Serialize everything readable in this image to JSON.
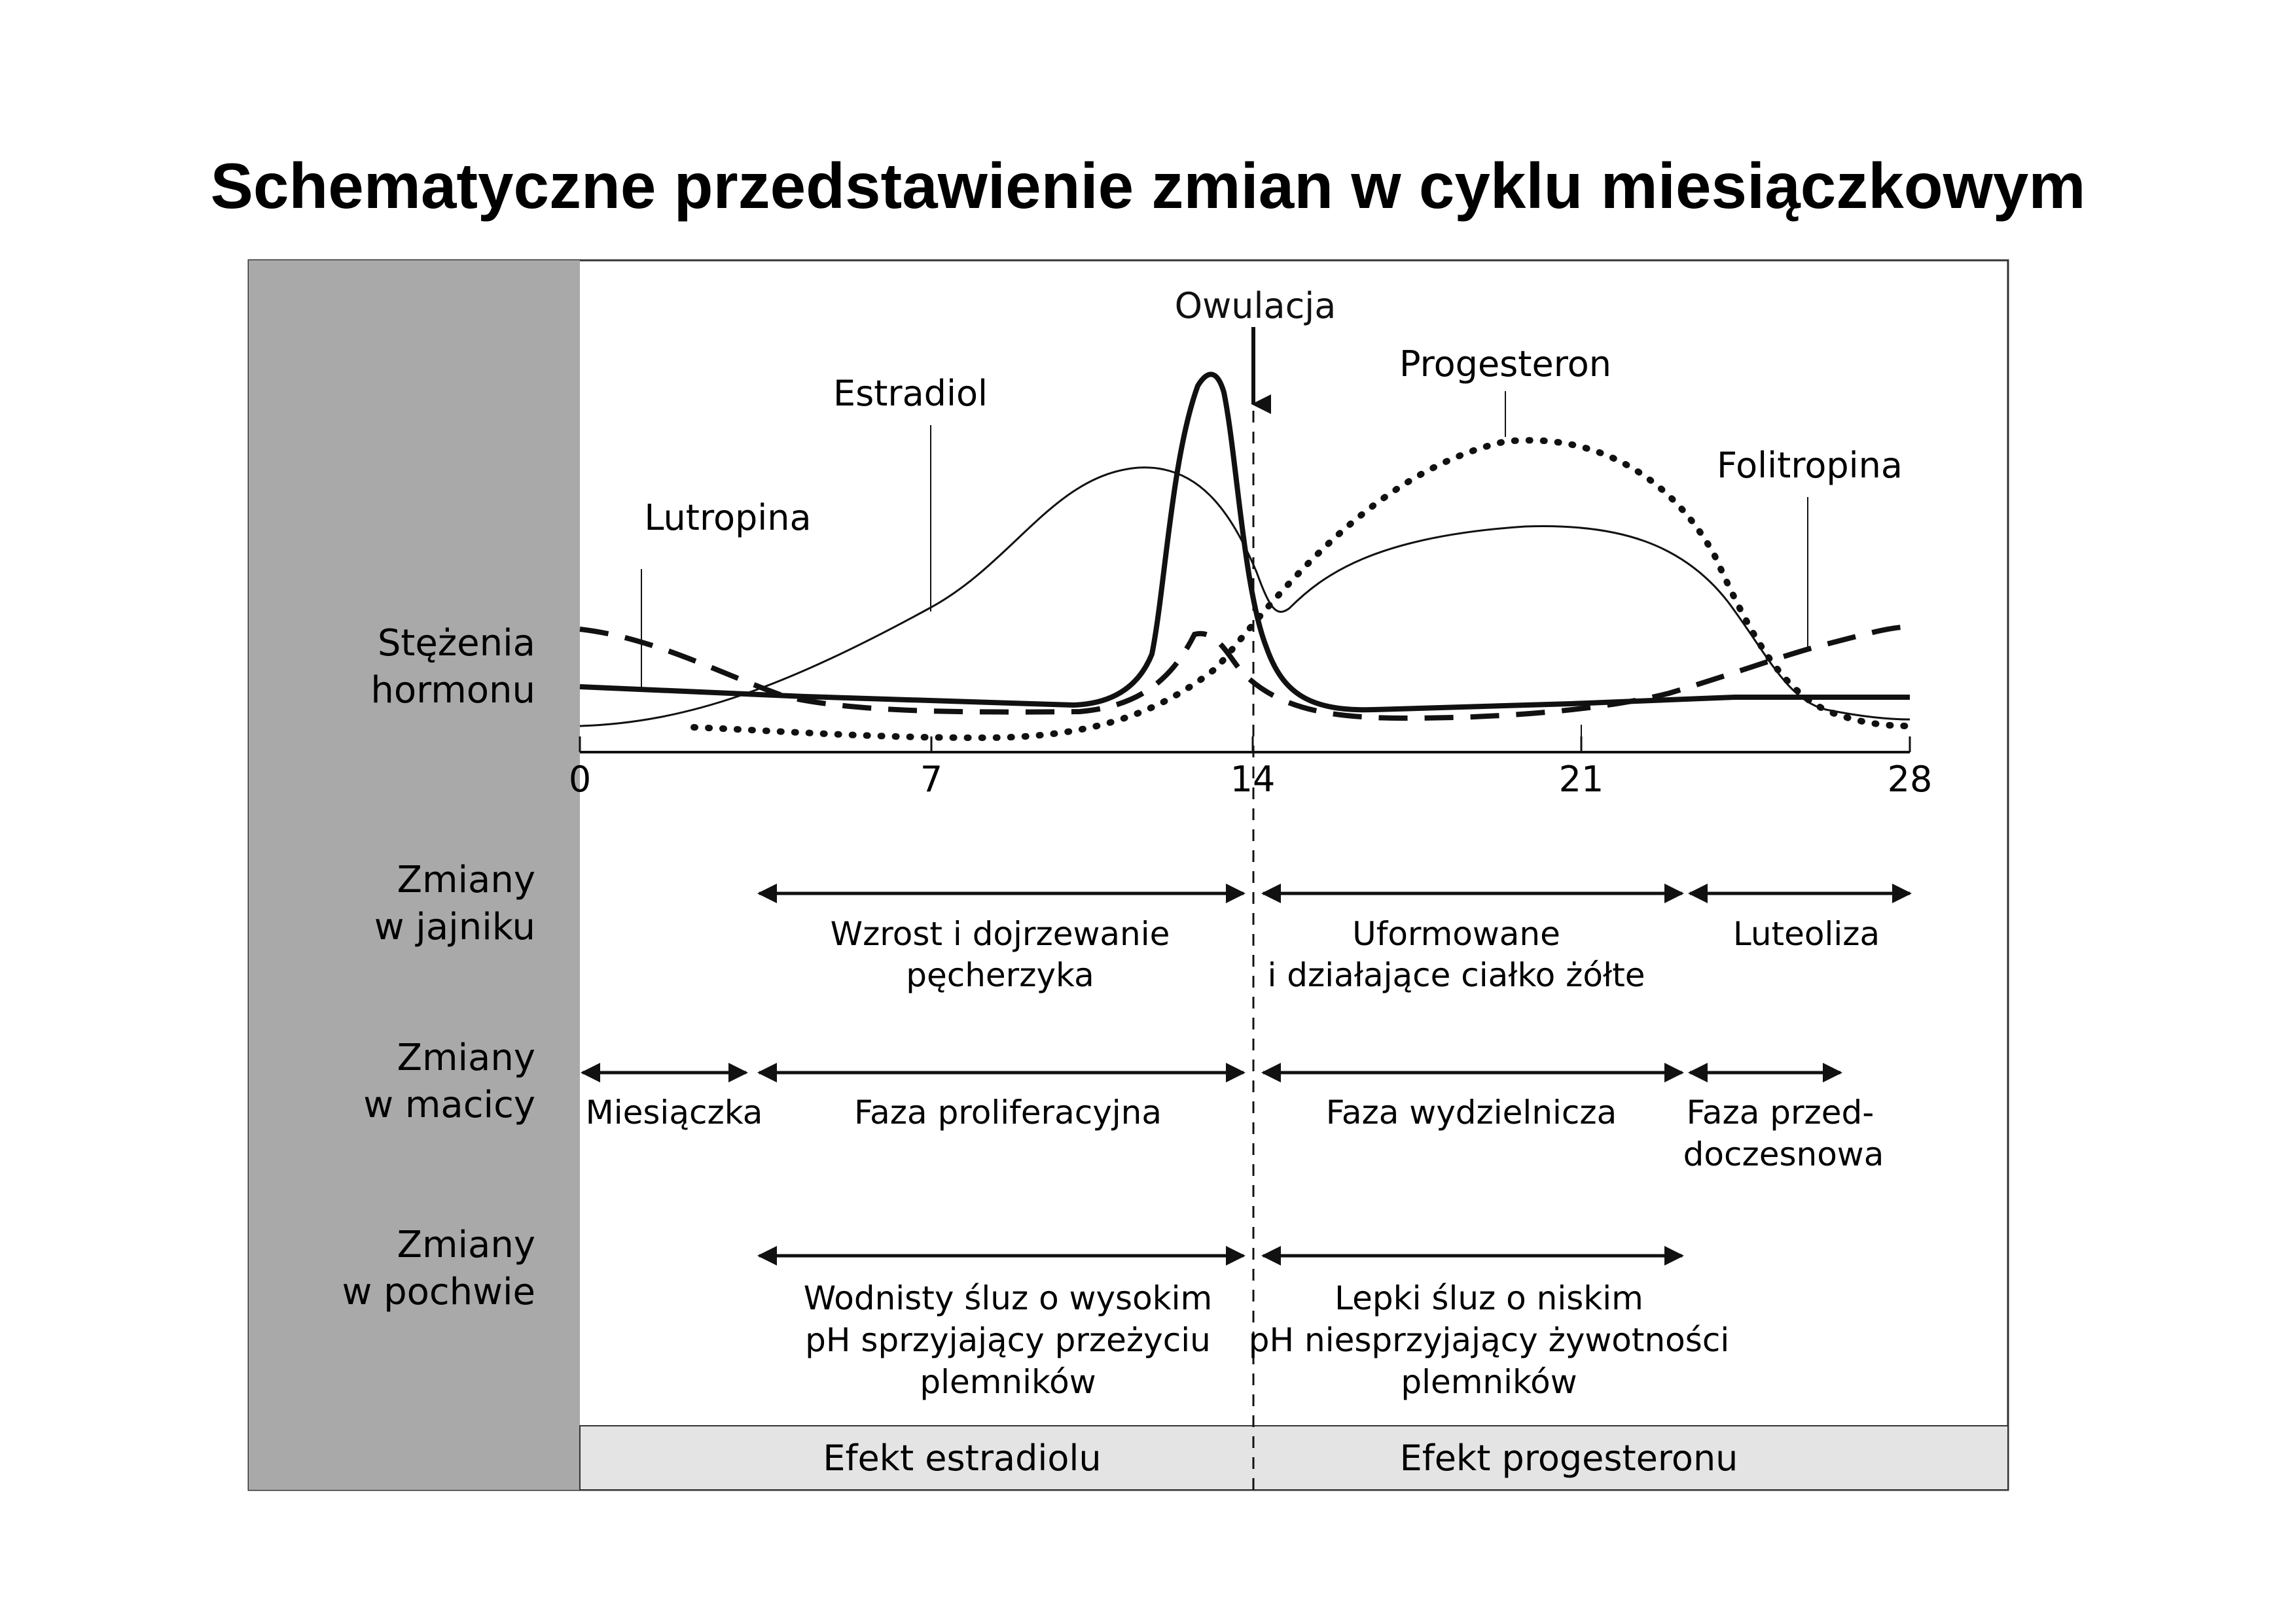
{
  "title": "Schematyczne przedstawienie zmian w cyklu miesiączkowym",
  "ovulation_label": "Owulacja",
  "hormone_labels": {
    "lutropina": "Lutropina",
    "estradiol": "Estradiol",
    "progesteron": "Progesteron",
    "folitropina": "Folitropina"
  },
  "row_labels": {
    "hormones": [
      "Stężenia",
      "hormonu"
    ],
    "ovary": [
      "Zmiany",
      "w jajniku"
    ],
    "uterus": [
      "Zmiany",
      "w macicy"
    ],
    "vagina": [
      "Zmiany",
      "w pochwie"
    ]
  },
  "axis_ticks": [
    "0",
    "7",
    "14",
    "21",
    "28"
  ],
  "ovary_phases": {
    "follicle": [
      "Wzrost i dojrzewanie",
      "pęcherzyka"
    ],
    "corpus_luteum": [
      "Uformowane",
      "i działające ciałko żółte"
    ],
    "luteolysis": [
      "Luteoliza"
    ]
  },
  "uterus_phases": {
    "menstruation": [
      "Miesiączka"
    ],
    "proliferative": [
      "Faza proliferacyjna"
    ],
    "secretory": [
      "Faza wydzielnicza"
    ],
    "premenstrual": [
      "Faza przed-",
      "doczesnowa"
    ]
  },
  "vagina_phases": {
    "estrogenic": [
      "Wodnisty śluz o wysokim",
      "pH sprzyjający przeżyciu",
      "plemników"
    ],
    "progestogenic": [
      "Lepki śluz o niskim",
      "pH niesprzyjający żywotności",
      "plemników"
    ]
  },
  "effects": {
    "estradiol": "Efekt estradiolu",
    "progesterone": "Efekt progesteronu"
  },
  "colors": {
    "sidebar": "#a9a9a9",
    "effect_band": "#e4e4e4",
    "ink": "#111111"
  }
}
